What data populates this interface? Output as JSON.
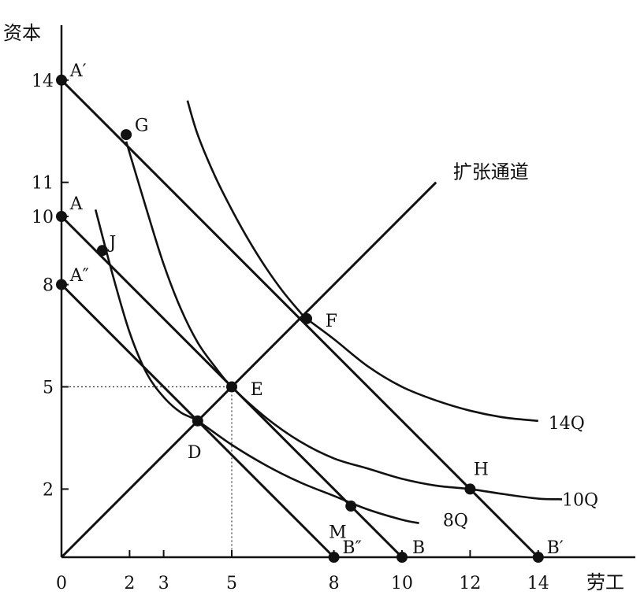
{
  "chart_data": {
    "type": "line",
    "xlabel": "劳工",
    "ylabel": "资本",
    "xlim": [
      0,
      16
    ],
    "ylim": [
      0,
      16
    ],
    "x_ticks": [
      {
        "value": 0,
        "label": "0"
      },
      {
        "value": 2,
        "label": "2"
      },
      {
        "value": 3,
        "label": "3"
      },
      {
        "value": 5,
        "label": "5"
      },
      {
        "value": 8,
        "label": "8"
      },
      {
        "value": 10,
        "label": "10"
      },
      {
        "value": 12,
        "label": "12"
      },
      {
        "value": 14,
        "label": "14"
      }
    ],
    "y_ticks": [
      {
        "value": 2,
        "label": "2"
      },
      {
        "value": 5,
        "label": "5"
      },
      {
        "value": 8,
        "label": "8"
      },
      {
        "value": 10,
        "label": "10"
      },
      {
        "value": 11,
        "label": "11"
      },
      {
        "value": 14,
        "label": "14"
      }
    ],
    "isocost_lines": [
      {
        "points": [
          [
            0,
            8
          ],
          [
            8,
            0
          ]
        ]
      },
      {
        "points": [
          [
            0,
            10
          ],
          [
            10,
            0
          ]
        ]
      },
      {
        "points": [
          [
            0,
            14
          ],
          [
            14,
            0
          ]
        ]
      }
    ],
    "isoquants": [
      {
        "name": "8Q",
        "label_at": [
          11.2,
          1.1
        ],
        "points": [
          [
            1,
            10.2
          ],
          [
            1.5,
            8.3
          ],
          [
            2,
            6.6
          ],
          [
            2.5,
            5.4
          ],
          [
            3,
            4.7
          ],
          [
            3.5,
            4.25
          ],
          [
            4,
            4
          ],
          [
            5,
            3.3
          ],
          [
            6,
            2.7
          ],
          [
            7,
            2.2
          ],
          [
            8,
            1.8
          ],
          [
            9,
            1.4
          ],
          [
            10,
            1.1
          ],
          [
            10.5,
            1
          ]
        ]
      },
      {
        "name": "10Q",
        "label_at": [
          14.7,
          1.7
        ],
        "points": [
          [
            1.9,
            12.2
          ],
          [
            2.5,
            10.2
          ],
          [
            3,
            8.6
          ],
          [
            3.5,
            7.3
          ],
          [
            4,
            6.3
          ],
          [
            4.5,
            5.6
          ],
          [
            5,
            5
          ],
          [
            6,
            4.1
          ],
          [
            7,
            3.4
          ],
          [
            8,
            2.9
          ],
          [
            9,
            2.6
          ],
          [
            10,
            2.3
          ],
          [
            11,
            2.1
          ],
          [
            12,
            2
          ],
          [
            13,
            1.85
          ],
          [
            14,
            1.72
          ],
          [
            14.7,
            1.7
          ]
        ]
      },
      {
        "name": "14Q",
        "label_at": [
          14.3,
          3.95
        ],
        "points": [
          [
            3.7,
            13.4
          ],
          [
            4,
            12.4
          ],
          [
            4.5,
            11.2
          ],
          [
            5,
            10.2
          ],
          [
            5.5,
            9.3
          ],
          [
            6,
            8.5
          ],
          [
            6.5,
            7.8
          ],
          [
            7,
            7.2
          ],
          [
            7.2,
            7
          ],
          [
            8,
            6.4
          ],
          [
            9,
            5.6
          ],
          [
            10,
            5
          ],
          [
            11,
            4.6
          ],
          [
            12,
            4.3
          ],
          [
            13,
            4.1
          ],
          [
            14,
            4
          ]
        ]
      }
    ],
    "expansion_path": {
      "label": "扩张通道",
      "points": [
        [
          0,
          0
        ],
        [
          11,
          11
        ]
      ],
      "label_at": [
        11.5,
        11.3
      ]
    },
    "guide_lines": [
      {
        "points": [
          [
            0,
            5
          ],
          [
            5,
            5
          ]
        ]
      },
      {
        "points": [
          [
            5,
            5
          ],
          [
            5,
            0
          ]
        ]
      }
    ],
    "points": [
      {
        "label": "A′",
        "x": 0,
        "y": 14,
        "label_dx": 0.25,
        "label_dy": 0.25
      },
      {
        "label": "A",
        "x": 0,
        "y": 10,
        "label_dx": 0.25,
        "label_dy": 0.35
      },
      {
        "label": "A″",
        "x": 0,
        "y": 8,
        "label_dx": 0.25,
        "label_dy": 0.25
      },
      {
        "label": "G",
        "x": 1.9,
        "y": 12.4,
        "label_dx": 0.25,
        "label_dy": 0.25
      },
      {
        "label": "J",
        "x": 1.2,
        "y": 9,
        "label_dx": 0.2,
        "label_dy": 0.2
      },
      {
        "label": "F",
        "x": 7.2,
        "y": 7,
        "label_dx": 0.55,
        "label_dy": -0.1
      },
      {
        "label": "E",
        "x": 5,
        "y": 5,
        "label_dx": 0.55,
        "label_dy": -0.1
      },
      {
        "label": "D",
        "x": 4,
        "y": 4,
        "label_dx": -0.3,
        "label_dy": -0.95
      },
      {
        "label": "H",
        "x": 12,
        "y": 2,
        "label_dx": 0.1,
        "label_dy": 0.55
      },
      {
        "label": "M",
        "x": 8.5,
        "y": 1.5,
        "label_dx": -0.65,
        "label_dy": -0.8
      },
      {
        "label": "B″",
        "x": 8,
        "y": 0,
        "label_dx": 0.25,
        "label_dy": 0.25
      },
      {
        "label": "B",
        "x": 10,
        "y": 0,
        "label_dx": 0.3,
        "label_dy": 0.25
      },
      {
        "label": "B′",
        "x": 14,
        "y": 0,
        "label_dx": 0.25,
        "label_dy": 0.25
      }
    ]
  }
}
